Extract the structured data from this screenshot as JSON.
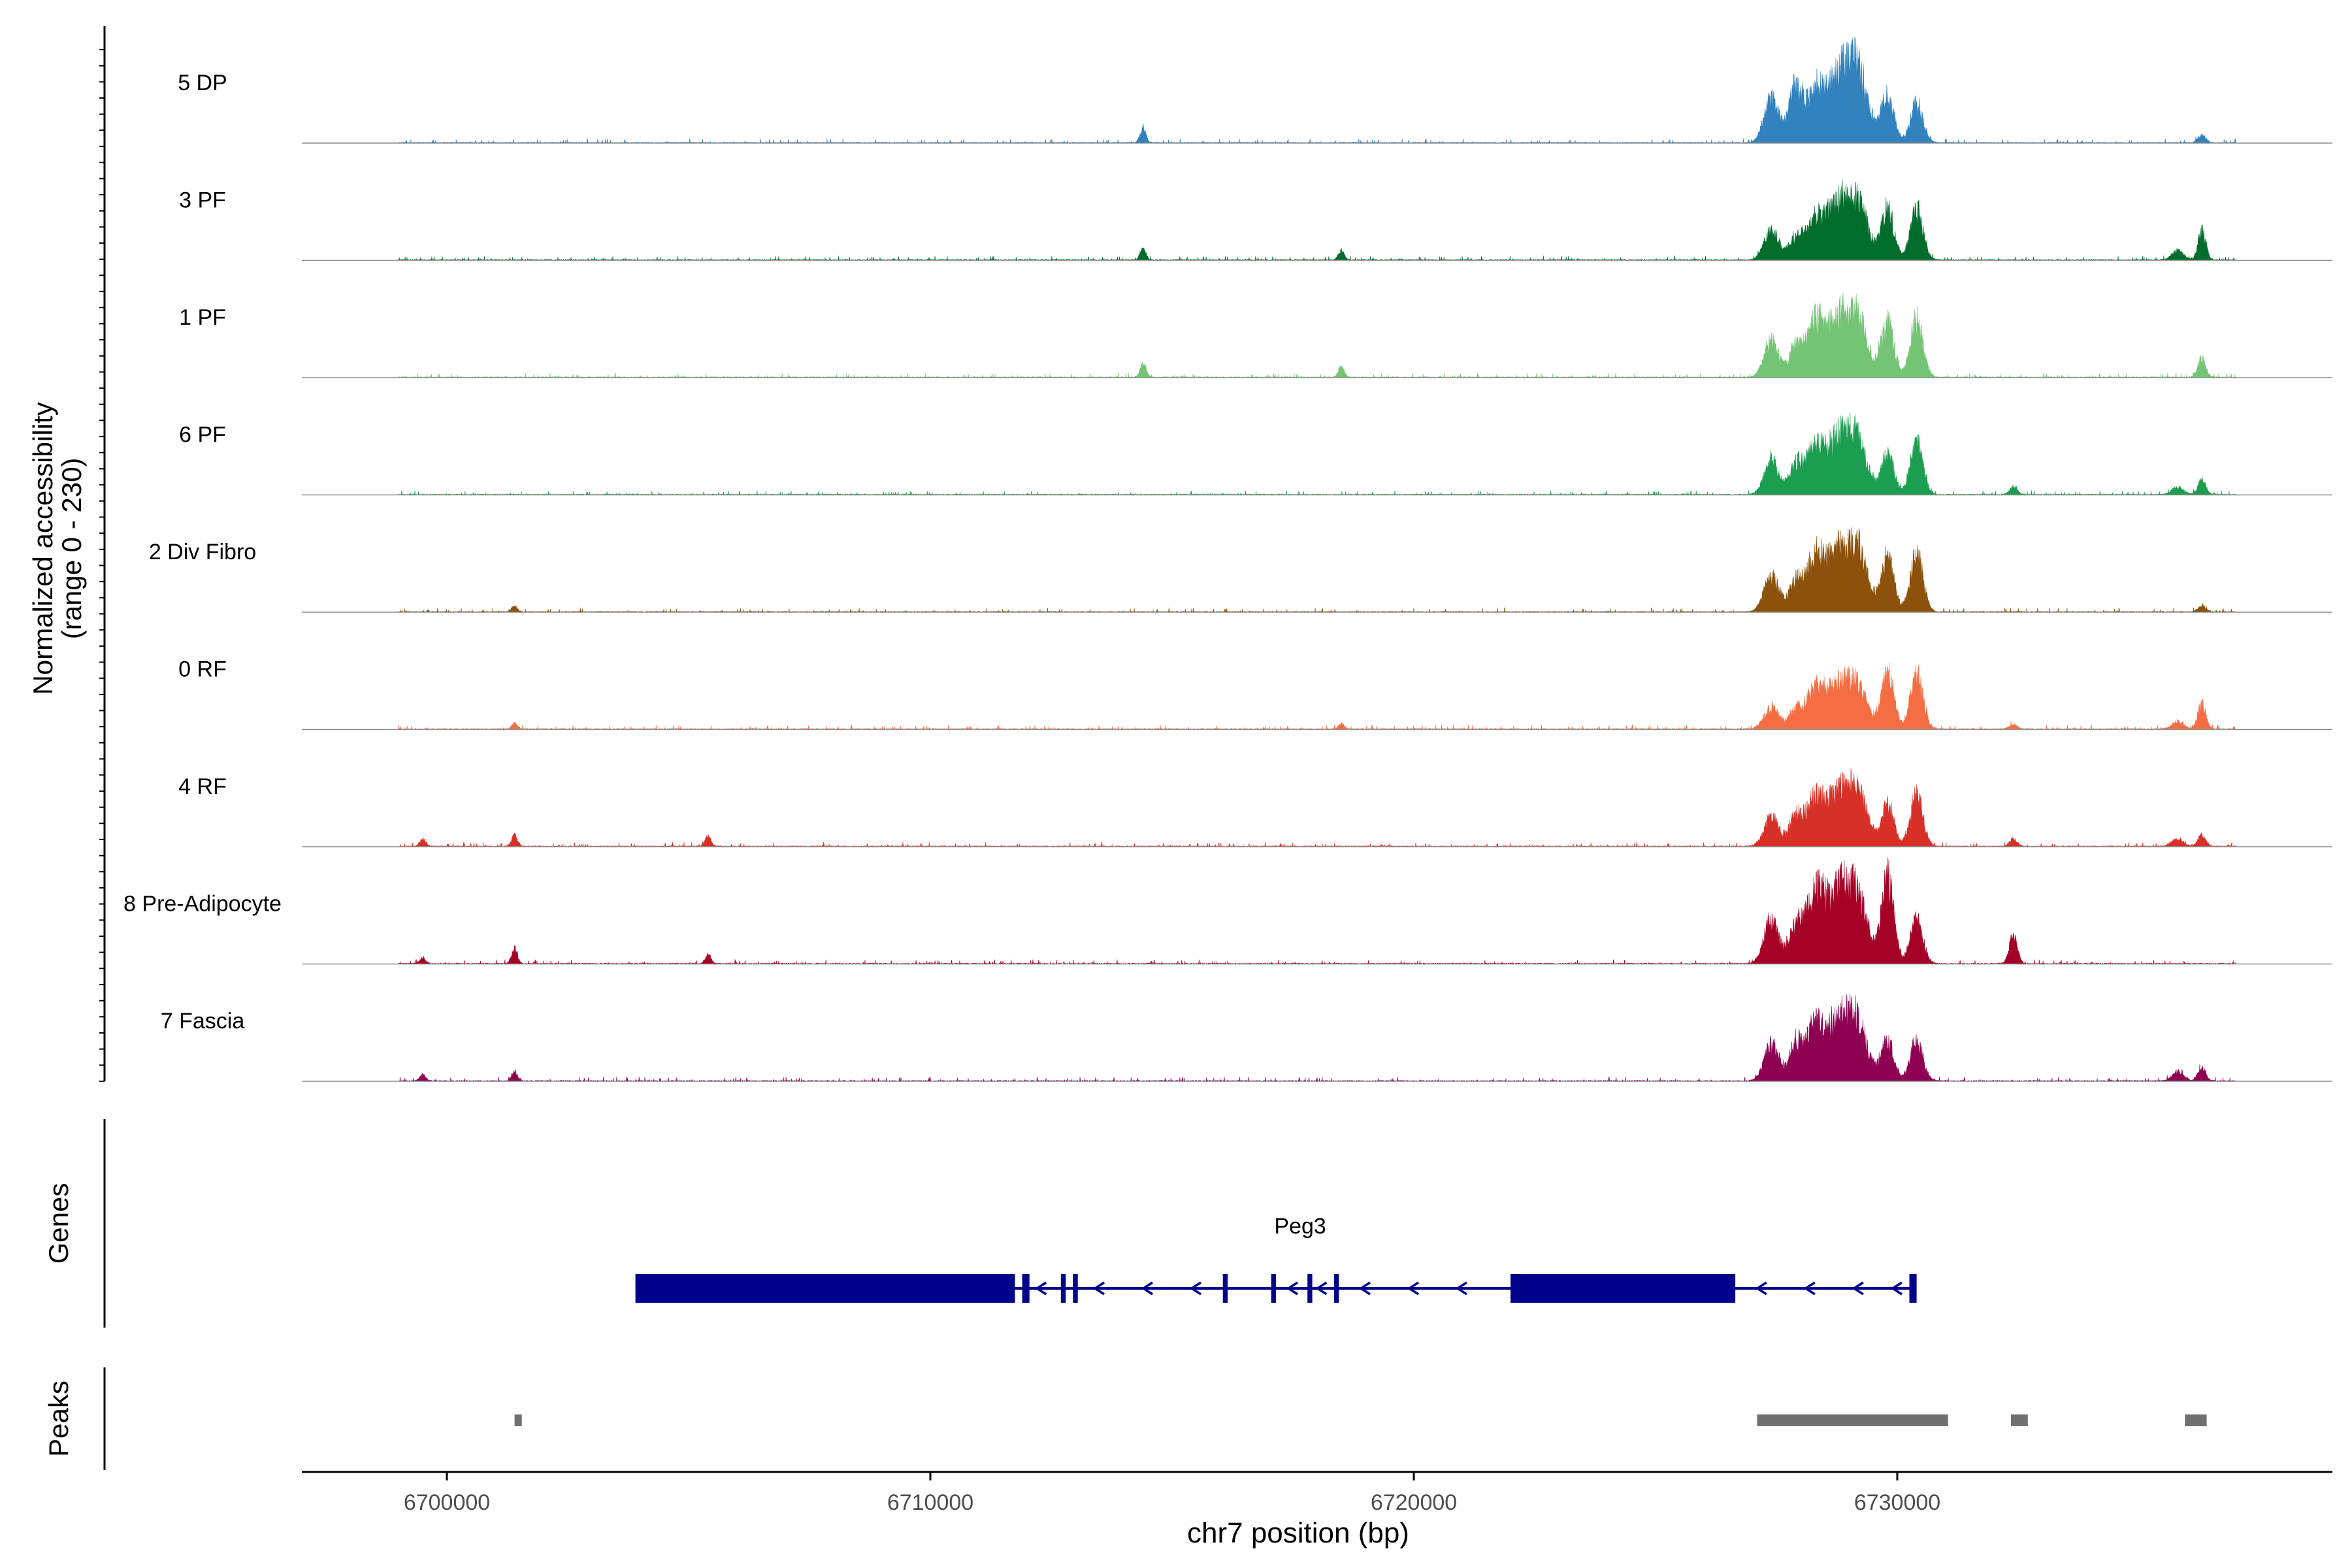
{
  "chart_data": {
    "type": "area",
    "title": "",
    "chromosome": "chr7",
    "xlabel": "chr7 position (bp)",
    "xlim": [
      6697000,
      6739000
    ],
    "xticks": [
      6700000,
      6710000,
      6720000,
      6730000
    ],
    "xtick_labels": [
      "6700000",
      "6710000",
      "6720000",
      "6730000"
    ],
    "coverage": {
      "ylabel_line1": "Normalized accessibility",
      "ylabel_line2": "(range 0 - 230)",
      "ylim": [
        0,
        230
      ],
      "track_start": 6699000,
      "track_end": 6737000,
      "series": [
        {
          "name": "5 DP",
          "color": "#3182BD",
          "peaks": [
            [
              6714400,
              60,
              42
            ],
            [
              6727400,
              150,
              120
            ],
            [
              6727900,
              140,
              150
            ],
            [
              6728300,
              180,
              130
            ],
            [
              6728800,
              250,
              180
            ],
            [
              6729200,
              200,
              170
            ],
            [
              6729800,
              130,
              130
            ],
            [
              6730400,
              130,
              110
            ],
            [
              6736300,
              80,
              20
            ]
          ]
        },
        {
          "name": "3 PF",
          "color": "#006D2C",
          "peaks": [
            [
              6714400,
              60,
              30
            ],
            [
              6718500,
              60,
              25
            ],
            [
              6727400,
              150,
              80
            ],
            [
              6727900,
              140,
              60
            ],
            [
              6728300,
              180,
              100
            ],
            [
              6728800,
              250,
              150
            ],
            [
              6729200,
              200,
              130
            ],
            [
              6729800,
              130,
              140
            ],
            [
              6730400,
              130,
              140
            ],
            [
              6735800,
              120,
              25
            ],
            [
              6736300,
              80,
              80
            ]
          ]
        },
        {
          "name": "1 PF",
          "color": "#74C476",
          "peaks": [
            [
              6714400,
              60,
              38
            ],
            [
              6718500,
              60,
              28
            ],
            [
              6727400,
              150,
              100
            ],
            [
              6727900,
              140,
              80
            ],
            [
              6728300,
              180,
              140
            ],
            [
              6728800,
              250,
              160
            ],
            [
              6729200,
              200,
              130
            ],
            [
              6729800,
              130,
              150
            ],
            [
              6730400,
              130,
              160
            ],
            [
              6736300,
              80,
              50
            ]
          ]
        },
        {
          "name": "6 PF",
          "color": "#1B9E4F",
          "peaks": [
            [
              6727400,
              150,
              90
            ],
            [
              6727900,
              140,
              80
            ],
            [
              6728300,
              180,
              120
            ],
            [
              6728800,
              250,
              150
            ],
            [
              6729200,
              200,
              120
            ],
            [
              6729800,
              130,
              110
            ],
            [
              6730400,
              130,
              140
            ],
            [
              6732400,
              80,
              20
            ],
            [
              6735800,
              120,
              20
            ],
            [
              6736300,
              80,
              40
            ]
          ]
        },
        {
          "name": "2 Div Fibro",
          "color": "#8C510A",
          "peaks": [
            [
              6701400,
              60,
              15
            ],
            [
              6727400,
              150,
              100
            ],
            [
              6727900,
              140,
              80
            ],
            [
              6728300,
              180,
              140
            ],
            [
              6728800,
              250,
              160
            ],
            [
              6729200,
              200,
              140
            ],
            [
              6729800,
              130,
              150
            ],
            [
              6730400,
              130,
              160
            ],
            [
              6736300,
              80,
              15
            ]
          ]
        },
        {
          "name": "0 RF",
          "color": "#F46D43",
          "peaks": [
            [
              6701400,
              60,
              15
            ],
            [
              6718500,
              60,
              15
            ],
            [
              6727400,
              150,
              60
            ],
            [
              6727900,
              140,
              50
            ],
            [
              6728300,
              180,
              100
            ],
            [
              6728800,
              250,
              120
            ],
            [
              6729200,
              200,
              90
            ],
            [
              6729800,
              130,
              150
            ],
            [
              6730400,
              130,
              150
            ],
            [
              6732400,
              80,
              12
            ],
            [
              6735800,
              120,
              20
            ],
            [
              6736300,
              80,
              70
            ]
          ]
        },
        {
          "name": "4 RF",
          "color": "#D73027",
          "peaks": [
            [
              6699500,
              60,
              20
            ],
            [
              6701400,
              60,
              30
            ],
            [
              6705400,
              60,
              28
            ],
            [
              6727400,
              150,
              80
            ],
            [
              6727900,
              140,
              80
            ],
            [
              6728300,
              180,
              120
            ],
            [
              6728800,
              250,
              140
            ],
            [
              6729200,
              200,
              120
            ],
            [
              6729800,
              130,
              110
            ],
            [
              6730400,
              130,
              140
            ],
            [
              6732400,
              80,
              20
            ],
            [
              6735800,
              120,
              20
            ],
            [
              6736300,
              80,
              30
            ]
          ]
        },
        {
          "name": "8 Pre-Adipocyte",
          "color": "#A50026",
          "peaks": [
            [
              6699500,
              60,
              15
            ],
            [
              6701400,
              60,
              40
            ],
            [
              6705400,
              60,
              25
            ],
            [
              6727400,
              150,
              120
            ],
            [
              6727900,
              140,
              100
            ],
            [
              6728300,
              180,
              180
            ],
            [
              6728800,
              250,
              200
            ],
            [
              6729200,
              200,
              140
            ],
            [
              6729800,
              130,
              230
            ],
            [
              6730400,
              130,
              120
            ],
            [
              6732400,
              80,
              80
            ]
          ]
        },
        {
          "name": "7 Fascia",
          "color": "#8E0152",
          "peaks": [
            [
              6699500,
              60,
              18
            ],
            [
              6701400,
              60,
              25
            ],
            [
              6727400,
              150,
              100
            ],
            [
              6727900,
              140,
              100
            ],
            [
              6728300,
              180,
              140
            ],
            [
              6728800,
              250,
              160
            ],
            [
              6729200,
              200,
              130
            ],
            [
              6729800,
              130,
              110
            ],
            [
              6730400,
              130,
              110
            ],
            [
              6735800,
              120,
              25
            ],
            [
              6736300,
              80,
              35
            ]
          ]
        }
      ]
    },
    "genes": {
      "label": "Genes",
      "name": "Peg3",
      "strand": "-",
      "color": "#00008B",
      "start": 6703900,
      "end": 6730400,
      "thick_blocks": [
        [
          6703900,
          6711750
        ],
        [
          6722000,
          6726650
        ]
      ],
      "exons": [
        [
          6711900,
          6712050
        ],
        [
          6712700,
          6712800
        ],
        [
          6712950,
          6713050
        ],
        [
          6716050,
          6716150
        ],
        [
          6717050,
          6717150
        ],
        [
          6717800,
          6717900
        ],
        [
          6718350,
          6718450
        ],
        [
          6730250,
          6730400
        ]
      ],
      "arrows": [
        6712300,
        6713500,
        6714500,
        6715500,
        6717500,
        6718100,
        6719000,
        6720000,
        6721000,
        6727200,
        6728200,
        6729200,
        6730000
      ]
    },
    "peaks_track": {
      "label": "Peaks",
      "color": "#707070",
      "regions": [
        [
          6701400,
          6701550
        ],
        [
          6727100,
          6731050
        ],
        [
          6732350,
          6732700
        ],
        [
          6735950,
          6736400
        ]
      ]
    }
  }
}
